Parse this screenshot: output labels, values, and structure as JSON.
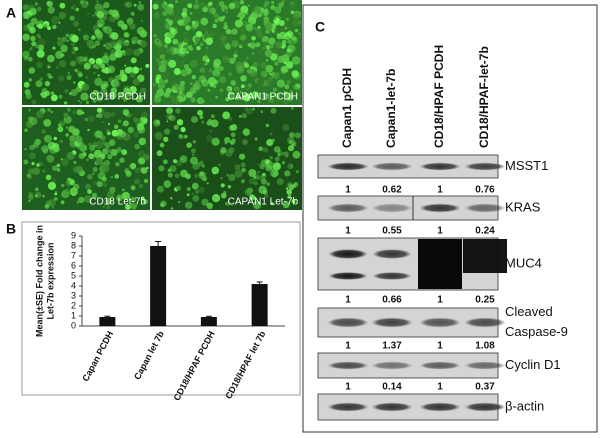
{
  "panel_a": {
    "label": "A",
    "images": [
      {
        "caption": "CD18 PCDH"
      },
      {
        "caption": "CAPAN1 PCDH"
      },
      {
        "caption": "CD18 Let-7b"
      },
      {
        "caption": "CAPAN1 Let-7b"
      }
    ]
  },
  "chart_data": {
    "type": "bar",
    "panel_label": "B",
    "ylabel": [
      "Mean(±SE) Fold change in",
      "Let-7b expression"
    ],
    "categories": [
      "Capan PCDH",
      "Capan let 7b",
      "CD18/HPAF PCDH",
      "CD18/HPAF let 7b"
    ],
    "values": [
      0.9,
      8.0,
      0.9,
      4.2
    ],
    "errors": [
      0.08,
      0.45,
      0.07,
      0.2
    ],
    "color": "#111111",
    "ylim": [
      0,
      9
    ],
    "yticks": [
      0,
      1,
      2,
      3,
      4,
      5,
      6,
      7,
      8,
      9
    ]
  },
  "panel_c": {
    "label": "C",
    "columns": [
      "Capan1 pCDH",
      "Capan1-let-7b",
      "CD18/HPAF PCDH",
      "CD18/HPAF-let-7b"
    ],
    "blots": [
      {
        "label_lines": [
          "MSST1"
        ],
        "quantification": [
          1,
          0.62,
          1,
          0.76
        ]
      },
      {
        "label_lines": [
          "KRAS"
        ],
        "quantification": [
          1,
          0.55,
          1,
          0.24
        ]
      },
      {
        "label_lines": [
          "MUC4"
        ],
        "quantification": [
          1,
          0.66,
          1,
          0.25
        ]
      },
      {
        "label_lines": [
          "Cleaved",
          "Caspase-9"
        ],
        "quantification": [
          1,
          1.37,
          1,
          1.08
        ]
      },
      {
        "label_lines": [
          "Cyclin D1"
        ],
        "quantification": [
          1,
          0.14,
          1,
          0.37
        ]
      },
      {
        "label_lines": [
          "β-actin"
        ]
      }
    ]
  }
}
